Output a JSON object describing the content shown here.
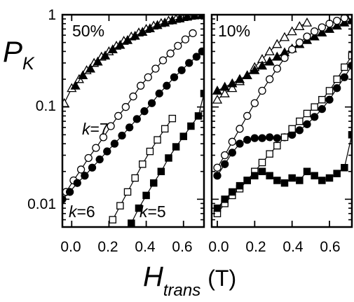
{
  "y_axis": {
    "symbol": "P",
    "subscript": "K",
    "ticks": [
      {
        "value": 1,
        "label": "1"
      },
      {
        "value": 0.1,
        "label": "0.1"
      },
      {
        "value": 0.01,
        "label": "0.01"
      }
    ]
  },
  "x_axis": {
    "symbol": "H",
    "subscript": "trans",
    "unit": "(T)"
  },
  "chart_data": [
    {
      "type": "scatter",
      "panel_label": "50%",
      "xlim": [
        -0.05,
        0.71
      ],
      "ylim": [
        0.005,
        1.0
      ],
      "yscale": "log",
      "x_ticks": [
        {
          "value": 0.0,
          "label": "0.0"
        },
        {
          "value": 0.2,
          "label": "0.2"
        },
        {
          "value": 0.4,
          "label": "0.4"
        },
        {
          "value": 0.6,
          "label": "0.6"
        }
      ],
      "annotations": [
        {
          "prefix": "k",
          "suffix": "=7",
          "x": 0.03,
          "y": 0.07
        },
        {
          "prefix": "k",
          "suffix": "=6",
          "x": -0.04,
          "y": 0.0095
        },
        {
          "prefix": "k",
          "suffix": "=5",
          "x": 0.28,
          "y": 0.0095
        }
      ],
      "series": [
        {
          "marker": "triangle",
          "filled": false,
          "x": [
            -0.04,
            0.0,
            0.04,
            0.08,
            0.12,
            0.16,
            0.2,
            0.24,
            0.28,
            0.32,
            0.36,
            0.4,
            0.44,
            0.48,
            0.52,
            0.56,
            0.6,
            0.64,
            0.68,
            0.71
          ],
          "y": [
            0.11,
            0.16,
            0.2,
            0.25,
            0.3,
            0.35,
            0.4,
            0.46,
            0.52,
            0.58,
            0.64,
            0.7,
            0.76,
            0.81,
            0.86,
            0.9,
            0.94,
            0.97,
            0.99,
            1.0
          ]
        },
        {
          "marker": "triangle",
          "filled": true,
          "x": [
            0.02,
            0.06,
            0.1,
            0.14,
            0.18,
            0.22,
            0.26,
            0.3,
            0.34,
            0.38,
            0.42,
            0.46,
            0.5,
            0.54,
            0.58,
            0.62,
            0.66,
            0.7
          ],
          "y": [
            0.17,
            0.22,
            0.26,
            0.31,
            0.36,
            0.42,
            0.47,
            0.53,
            0.59,
            0.65,
            0.71,
            0.77,
            0.82,
            0.87,
            0.91,
            0.95,
            0.98,
            1.0
          ]
        },
        {
          "marker": "circle",
          "filled": false,
          "x": [
            -0.03,
            0.01,
            0.05,
            0.09,
            0.13,
            0.17,
            0.21,
            0.25,
            0.29,
            0.33,
            0.37,
            0.41,
            0.45,
            0.49,
            0.53,
            0.57,
            0.61,
            0.65
          ],
          "y": [
            0.012,
            0.016,
            0.021,
            0.028,
            0.036,
            0.047,
            0.062,
            0.08,
            0.1,
            0.13,
            0.17,
            0.21,
            0.26,
            0.32,
            0.38,
            0.46,
            0.54,
            0.63
          ]
        },
        {
          "marker": "circle",
          "filled": true,
          "x": [
            -0.05,
            -0.01,
            0.03,
            0.07,
            0.11,
            0.15,
            0.19,
            0.23,
            0.27,
            0.31,
            0.35,
            0.39,
            0.43,
            0.47,
            0.51,
            0.55,
            0.59,
            0.63,
            0.67,
            0.7
          ],
          "y": [
            0.01,
            0.012,
            0.015,
            0.018,
            0.022,
            0.027,
            0.033,
            0.04,
            0.049,
            0.06,
            0.074,
            0.09,
            0.11,
            0.14,
            0.17,
            0.21,
            0.25,
            0.3,
            0.35,
            0.4
          ]
        },
        {
          "marker": "square",
          "filled": false,
          "x": [
            0.22,
            0.26,
            0.3,
            0.34,
            0.38,
            0.42,
            0.46,
            0.5,
            0.54
          ],
          "y": [
            0.006,
            0.0085,
            0.012,
            0.017,
            0.024,
            0.033,
            0.044,
            0.058,
            0.075
          ]
        },
        {
          "marker": "square",
          "filled": true,
          "x": [
            0.32,
            0.36,
            0.4,
            0.44,
            0.48,
            0.52,
            0.56,
            0.6,
            0.64,
            0.68,
            0.71
          ],
          "y": [
            0.0055,
            0.008,
            0.011,
            0.015,
            0.02,
            0.028,
            0.037,
            0.048,
            0.062,
            0.08,
            0.14
          ]
        }
      ]
    },
    {
      "type": "scatter",
      "panel_label": "10%",
      "xlim": [
        -0.03,
        0.72
      ],
      "ylim": [
        0.005,
        1.0
      ],
      "yscale": "log",
      "x_ticks": [
        {
          "value": 0.0,
          "label": "0.0"
        },
        {
          "value": 0.2,
          "label": "0.2"
        },
        {
          "value": 0.4,
          "label": "0.4"
        },
        {
          "value": 0.6,
          "label": "0.6"
        }
      ],
      "annotations": [],
      "series": [
        {
          "marker": "triangle",
          "filled": false,
          "x": [
            0.0,
            0.04,
            0.08,
            0.12,
            0.16,
            0.2,
            0.24,
            0.28,
            0.32,
            0.36,
            0.4,
            0.44,
            0.48
          ],
          "y": [
            0.12,
            0.14,
            0.16,
            0.19,
            0.22,
            0.27,
            0.33,
            0.4,
            0.48,
            0.57,
            0.66,
            0.75,
            0.82
          ]
        },
        {
          "marker": "triangle",
          "filled": true,
          "x": [
            0.0,
            0.04,
            0.08,
            0.12,
            0.16,
            0.2,
            0.24,
            0.28,
            0.32,
            0.36,
            0.4,
            0.44,
            0.48,
            0.52,
            0.56,
            0.6,
            0.64,
            0.68,
            0.72
          ],
          "y": [
            0.15,
            0.165,
            0.18,
            0.2,
            0.22,
            0.25,
            0.28,
            0.31,
            0.35,
            0.39,
            0.43,
            0.48,
            0.53,
            0.58,
            0.64,
            0.7,
            0.76,
            0.82,
            0.88
          ]
        },
        {
          "marker": "circle",
          "filled": false,
          "x": [
            0.0,
            0.04,
            0.08,
            0.12,
            0.16,
            0.2,
            0.24,
            0.28,
            0.32,
            0.36,
            0.4,
            0.44,
            0.48,
            0.52,
            0.56,
            0.6,
            0.64,
            0.68,
            0.72
          ],
          "y": [
            0.022,
            0.03,
            0.042,
            0.058,
            0.08,
            0.11,
            0.15,
            0.2,
            0.26,
            0.34,
            0.42,
            0.5,
            0.58,
            0.66,
            0.73,
            0.8,
            0.86,
            0.92,
            0.97
          ]
        },
        {
          "marker": "circle",
          "filled": true,
          "x": [
            0.0,
            0.04,
            0.08,
            0.12,
            0.16,
            0.2,
            0.24,
            0.28,
            0.32,
            0.36,
            0.4,
            0.44,
            0.48,
            0.52,
            0.56,
            0.6,
            0.64,
            0.68,
            0.72
          ],
          "y": [
            0.018,
            0.024,
            0.032,
            0.04,
            0.044,
            0.046,
            0.046,
            0.047,
            0.046,
            0.047,
            0.05,
            0.056,
            0.065,
            0.078,
            0.095,
            0.12,
            0.16,
            0.21,
            0.28
          ]
        },
        {
          "marker": "square",
          "filled": false,
          "x": [
            0.0,
            0.04,
            0.08,
            0.12,
            0.16,
            0.2,
            0.24,
            0.28,
            0.32,
            0.36,
            0.4,
            0.44,
            0.48,
            0.52,
            0.56,
            0.6,
            0.64,
            0.68,
            0.72
          ],
          "y": [
            0.007,
            0.009,
            0.011,
            0.013,
            0.016,
            0.02,
            0.025,
            0.031,
            0.038,
            0.047,
            0.058,
            0.07,
            0.085,
            0.1,
            0.12,
            0.15,
            0.2,
            0.27,
            0.36
          ]
        },
        {
          "marker": "square",
          "filled": true,
          "x": [
            0.0,
            0.04,
            0.08,
            0.12,
            0.16,
            0.2,
            0.24,
            0.28,
            0.32,
            0.36,
            0.4,
            0.44,
            0.48,
            0.52,
            0.56,
            0.6,
            0.64,
            0.68,
            0.72
          ],
          "y": [
            0.008,
            0.01,
            0.012,
            0.014,
            0.016,
            0.018,
            0.02,
            0.018,
            0.016,
            0.015,
            0.017,
            0.016,
            0.02,
            0.018,
            0.016,
            0.017,
            0.019,
            0.022,
            0.05
          ]
        }
      ]
    }
  ]
}
